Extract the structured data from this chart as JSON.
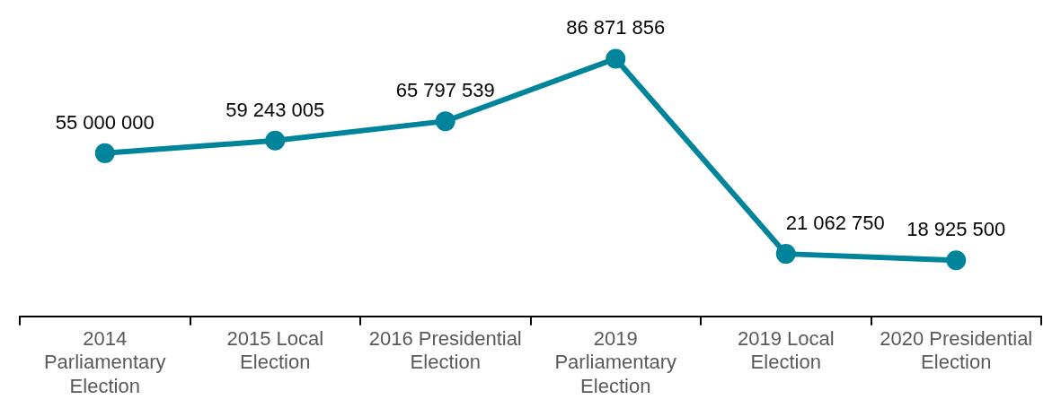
{
  "chart_data": {
    "type": "line",
    "categories": [
      "2014 Parliamentary Election",
      "2015 Local Election",
      "2016 Presidential Election",
      "2019 Parliamentary Election",
      "2019 Local Election",
      "2020 Presidential Election"
    ],
    "series": [
      {
        "color": "#00849c",
        "values": [
          55000000,
          59243005,
          65797539,
          86871856,
          21062750,
          18925500
        ]
      }
    ],
    "tick_labels": "x",
    "data_labels": true,
    "marker": "circle",
    "line_style": "solid",
    "grid": false,
    "legend": false
  }
}
